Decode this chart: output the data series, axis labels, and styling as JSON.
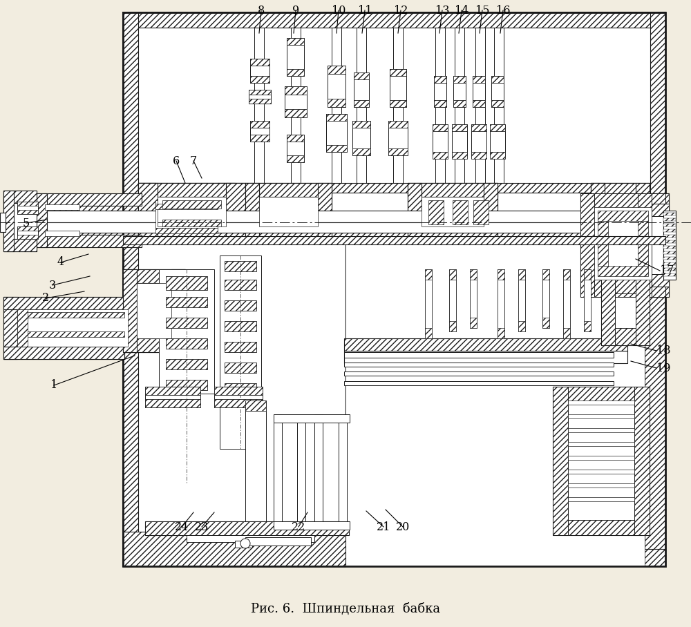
{
  "title": "Рис. 6.  Шпиндельная  бабка",
  "bg_color": "#f2ede0",
  "line_color": "#1a1a1a",
  "fig_width": 10.0,
  "fig_height": 9.08
}
